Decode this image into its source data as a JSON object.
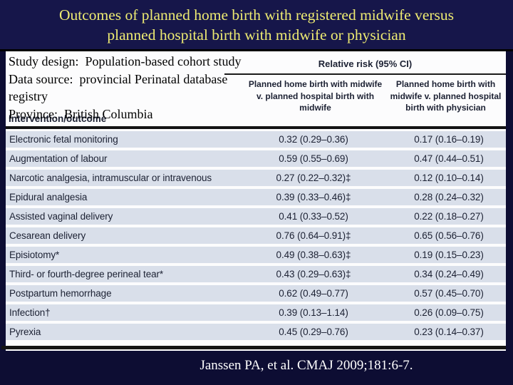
{
  "title": {
    "line1": "Outcomes of planned home birth with registered midwife versus",
    "line2": "planned hospital birth with midwife or physician"
  },
  "study_info": {
    "line1": "Study design:  Population-based cohort study",
    "line2": "Data source:  provincial Perinatal database",
    "line3": "registry",
    "line4": "Province:  British Columbia"
  },
  "table": {
    "corner_header": "Intervention/outcome",
    "group_header": "Relative risk (95% CI)",
    "col1_header": "Planned home birth with midwife v. planned hospital birth with midwife",
    "col2_header": "Planned home birth with midwife v. planned hospital birth with physician",
    "rows": [
      {
        "outcome": "Electronic fetal monitoring",
        "rr_vs_midwife": "0.32 (0.29–0.36)",
        "rr_vs_physician": "0.17 (0.16–0.19)"
      },
      {
        "outcome": "Augmentation of labour",
        "rr_vs_midwife": "0.59 (0.55–0.69)",
        "rr_vs_physician": "0.47 (0.44–0.51)"
      },
      {
        "outcome": "Narcotic analgesia, intramuscular or intravenous",
        "rr_vs_midwife": "0.27 (0.22–0.32)‡",
        "rr_vs_physician": "0.12 (0.10–0.14)"
      },
      {
        "outcome": "Epidural analgesia",
        "rr_vs_midwife": "0.39 (0.33–0.46)‡",
        "rr_vs_physician": "0.28 (0.24–0.32)"
      },
      {
        "outcome": "Assisted vaginal delivery",
        "rr_vs_midwife": "0.41 (0.33–0.52)",
        "rr_vs_physician": "0.22 (0.18–0.27)"
      },
      {
        "outcome": "Cesarean delivery",
        "rr_vs_midwife": "0.76 (0.64–0.91)‡",
        "rr_vs_physician": "0.65 (0.56–0.76)"
      },
      {
        "outcome": "Episiotomy*",
        "rr_vs_midwife": "0.49 (0.38–0.63)‡",
        "rr_vs_physician": "0.19 (0.15–0.23)"
      },
      {
        "outcome": "Third- or fourth-degree perineal tear*",
        "rr_vs_midwife": "0.43 (0.29–0.63)‡",
        "rr_vs_physician": "0.34 (0.24–0.49)"
      },
      {
        "outcome": "Postpartum hemorrhage",
        "rr_vs_midwife": "0.62 (0.49–0.77)",
        "rr_vs_physician": "0.57 (0.45–0.70)"
      },
      {
        "outcome": "Infection†",
        "rr_vs_midwife": "0.39 (0.13–1.14)",
        "rr_vs_physician": "0.26 (0.09–0.75)"
      },
      {
        "outcome": "Pyrexia",
        "rr_vs_midwife": "0.45 (0.29–0.76)",
        "rr_vs_physician": "0.23 (0.14–0.37)"
      }
    ]
  },
  "citation": "Janssen PA, et al. CMAJ 2009;181:6-7.",
  "colors": {
    "frame_navy": "#0d0d33",
    "title_band_navy": "#16164a",
    "title_yellow": "#eeeb72",
    "row_band_blue": "#d9dfea",
    "table_text_navy": "#1c2133",
    "rule_black": "#141414",
    "citation_white": "#ffffff"
  },
  "chart_data": {
    "type": "table",
    "title": "Outcomes of planned home birth with registered midwife versus planned hospital birth with midwife or physician",
    "columns": [
      "Intervention/outcome",
      "Relative risk (95% CI) — Planned home birth with midwife v. planned hospital birth with midwife",
      "Relative risk (95% CI) — Planned home birth with midwife v. planned hospital birth with physician"
    ],
    "rows": [
      [
        "Electronic fetal monitoring",
        "0.32 (0.29–0.36)",
        "0.17 (0.16–0.19)"
      ],
      [
        "Augmentation of labour",
        "0.59 (0.55–0.69)",
        "0.47 (0.44–0.51)"
      ],
      [
        "Narcotic analgesia, intramuscular or intravenous",
        "0.27 (0.22–0.32)‡",
        "0.12 (0.10–0.14)"
      ],
      [
        "Epidural analgesia",
        "0.39 (0.33–0.46)‡",
        "0.28 (0.24–0.32)"
      ],
      [
        "Assisted vaginal delivery",
        "0.41 (0.33–0.52)",
        "0.22 (0.18–0.27)"
      ],
      [
        "Cesarean delivery",
        "0.76 (0.64–0.91)‡",
        "0.65 (0.56–0.76)"
      ],
      [
        "Episiotomy*",
        "0.49 (0.38–0.63)‡",
        "0.19 (0.15–0.23)"
      ],
      [
        "Third- or fourth-degree perineal tear*",
        "0.43 (0.29–0.63)‡",
        "0.34 (0.24–0.49)"
      ],
      [
        "Postpartum hemorrhage",
        "0.62 (0.49–0.77)",
        "0.57 (0.45–0.70)"
      ],
      [
        "Infection†",
        "0.39 (0.13–1.14)",
        "0.26 (0.09–0.75)"
      ],
      [
        "Pyrexia",
        "0.45 (0.29–0.76)",
        "0.23 (0.14–0.37)"
      ]
    ]
  }
}
